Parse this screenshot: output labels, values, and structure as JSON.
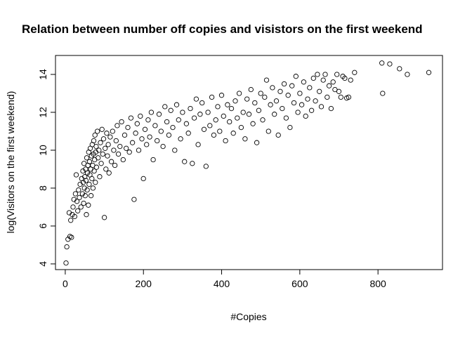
{
  "chart_data": {
    "type": "scatter",
    "title": "Relation between number off copies and visistors on the first weekend",
    "xlabel": "#Copies",
    "ylabel": "log(Visitors on the first weekend)",
    "xlim": [
      -25,
      965
    ],
    "ylim": [
      3.7,
      15.0
    ],
    "x_ticks": [
      0,
      200,
      400,
      600,
      800
    ],
    "y_ticks": [
      4,
      6,
      8,
      10,
      12,
      14
    ],
    "grid": false,
    "legend": "none",
    "marker": "open-circle",
    "point_color": "#000000",
    "points": [
      [
        2,
        4.05
      ],
      [
        4,
        4.9
      ],
      [
        7,
        5.3
      ],
      [
        12,
        5.45
      ],
      [
        16,
        5.4
      ],
      [
        10,
        6.7
      ],
      [
        14,
        6.3
      ],
      [
        18,
        6.6
      ],
      [
        20,
        7.0
      ],
      [
        24,
        6.5
      ],
      [
        22,
        7.4
      ],
      [
        26,
        7.7
      ],
      [
        28,
        8.7
      ],
      [
        30,
        7.3
      ],
      [
        32,
        6.8
      ],
      [
        34,
        7.9
      ],
      [
        36,
        7.5
      ],
      [
        38,
        8.2
      ],
      [
        40,
        7.0
      ],
      [
        42,
        8.5
      ],
      [
        44,
        7.7
      ],
      [
        45,
        8.9
      ],
      [
        46,
        8.3
      ],
      [
        47,
        7.2
      ],
      [
        48,
        9.3
      ],
      [
        49,
        8.0
      ],
      [
        50,
        8.6
      ],
      [
        51,
        7.6
      ],
      [
        52,
        9.0
      ],
      [
        53,
        8.4
      ],
      [
        54,
        6.6
      ],
      [
        55,
        9.6
      ],
      [
        56,
        7.9
      ],
      [
        57,
        8.8
      ],
      [
        58,
        9.2
      ],
      [
        59,
        7.1
      ],
      [
        60,
        9.9
      ],
      [
        61,
        8.2
      ],
      [
        62,
        9.4
      ],
      [
        63,
        8.7
      ],
      [
        64,
        10.1
      ],
      [
        65,
        9.0
      ],
      [
        66,
        7.6
      ],
      [
        67,
        9.7
      ],
      [
        68,
        8.5
      ],
      [
        69,
        10.3
      ],
      [
        70,
        9.2
      ],
      [
        71,
        8.0
      ],
      [
        72,
        9.8
      ],
      [
        73,
        10.5
      ],
      [
        74,
        8.9
      ],
      [
        75,
        9.5
      ],
      [
        76,
        10.8
      ],
      [
        77,
        8.3
      ],
      [
        78,
        9.9
      ],
      [
        79,
        10.2
      ],
      [
        80,
        9.1
      ],
      [
        82,
        11.0
      ],
      [
        84,
        9.6
      ],
      [
        86,
        10.0
      ],
      [
        88,
        8.6
      ],
      [
        90,
        10.4
      ],
      [
        92,
        9.3
      ],
      [
        94,
        11.1
      ],
      [
        96,
        9.8
      ],
      [
        98,
        10.6
      ],
      [
        100,
        6.45
      ],
      [
        102,
        10.1
      ],
      [
        104,
        9.0
      ],
      [
        106,
        10.9
      ],
      [
        108,
        9.7
      ],
      [
        110,
        10.3
      ],
      [
        112,
        8.8
      ],
      [
        115,
        10.7
      ],
      [
        118,
        9.4
      ],
      [
        121,
        11.0
      ],
      [
        124,
        10.0
      ],
      [
        127,
        9.2
      ],
      [
        130,
        10.5
      ],
      [
        133,
        11.3
      ],
      [
        136,
        9.8
      ],
      [
        140,
        10.2
      ],
      [
        144,
        11.5
      ],
      [
        148,
        9.5
      ],
      [
        152,
        10.8
      ],
      [
        156,
        10.1
      ],
      [
        160,
        11.2
      ],
      [
        164,
        9.9
      ],
      [
        168,
        11.7
      ],
      [
        172,
        10.4
      ],
      [
        176,
        7.4
      ],
      [
        180,
        10.9
      ],
      [
        184,
        11.4
      ],
      [
        188,
        10.0
      ],
      [
        192,
        11.8
      ],
      [
        196,
        10.6
      ],
      [
        200,
        8.5
      ],
      [
        204,
        11.1
      ],
      [
        208,
        10.3
      ],
      [
        212,
        11.6
      ],
      [
        216,
        10.7
      ],
      [
        220,
        12.0
      ],
      [
        225,
        9.5
      ],
      [
        230,
        11.3
      ],
      [
        235,
        10.5
      ],
      [
        240,
        11.9
      ],
      [
        245,
        11.0
      ],
      [
        250,
        10.2
      ],
      [
        255,
        12.3
      ],
      [
        260,
        11.5
      ],
      [
        265,
        10.8
      ],
      [
        270,
        12.1
      ],
      [
        275,
        11.2
      ],
      [
        280,
        10.0
      ],
      [
        285,
        12.4
      ],
      [
        290,
        11.6
      ],
      [
        295,
        10.6
      ],
      [
        300,
        12.0
      ],
      [
        305,
        9.4
      ],
      [
        310,
        11.4
      ],
      [
        315,
        10.9
      ],
      [
        320,
        12.2
      ],
      [
        325,
        9.3
      ],
      [
        330,
        11.7
      ],
      [
        335,
        12.7
      ],
      [
        340,
        10.3
      ],
      [
        345,
        11.9
      ],
      [
        350,
        12.5
      ],
      [
        355,
        11.1
      ],
      [
        360,
        9.15
      ],
      [
        365,
        12.0
      ],
      [
        370,
        11.3
      ],
      [
        375,
        12.8
      ],
      [
        380,
        10.8
      ],
      [
        385,
        11.6
      ],
      [
        390,
        12.3
      ],
      [
        395,
        11.0
      ],
      [
        400,
        12.9
      ],
      [
        405,
        11.8
      ],
      [
        410,
        10.5
      ],
      [
        415,
        12.4
      ],
      [
        420,
        11.5
      ],
      [
        425,
        12.2
      ],
      [
        430,
        10.9
      ],
      [
        435,
        12.6
      ],
      [
        440,
        11.7
      ],
      [
        445,
        13.0
      ],
      [
        450,
        11.2
      ],
      [
        455,
        12.0
      ],
      [
        460,
        10.6
      ],
      [
        465,
        12.7
      ],
      [
        470,
        11.9
      ],
      [
        475,
        13.2
      ],
      [
        480,
        11.4
      ],
      [
        485,
        12.5
      ],
      [
        490,
        10.4
      ],
      [
        495,
        12.1
      ],
      [
        500,
        13.0
      ],
      [
        505,
        11.6
      ],
      [
        510,
        12.8
      ],
      [
        515,
        13.7
      ],
      [
        520,
        11.0
      ],
      [
        525,
        12.4
      ],
      [
        530,
        13.3
      ],
      [
        535,
        11.9
      ],
      [
        540,
        12.6
      ],
      [
        545,
        10.8
      ],
      [
        550,
        13.1
      ],
      [
        555,
        12.2
      ],
      [
        560,
        13.5
      ],
      [
        565,
        11.7
      ],
      [
        570,
        12.9
      ],
      [
        575,
        11.2
      ],
      [
        580,
        13.4
      ],
      [
        585,
        12.5
      ],
      [
        590,
        13.9
      ],
      [
        595,
        12.0
      ],
      [
        600,
        13.0
      ],
      [
        605,
        12.4
      ],
      [
        610,
        13.6
      ],
      [
        615,
        11.8
      ],
      [
        620,
        12.7
      ],
      [
        625,
        13.3
      ],
      [
        630,
        12.1
      ],
      [
        635,
        13.8
      ],
      [
        640,
        12.6
      ],
      [
        645,
        14.0
      ],
      [
        650,
        13.1
      ],
      [
        655,
        12.3
      ],
      [
        660,
        13.7
      ],
      [
        665,
        14.0
      ],
      [
        670,
        12.8
      ],
      [
        675,
        13.4
      ],
      [
        680,
        12.2
      ],
      [
        685,
        13.6
      ],
      [
        690,
        13.2
      ],
      [
        695,
        14.0
      ],
      [
        700,
        13.1
      ],
      [
        705,
        12.8
      ],
      [
        710,
        13.9
      ],
      [
        715,
        13.8
      ],
      [
        720,
        12.75
      ],
      [
        725,
        12.8
      ],
      [
        730,
        13.7
      ],
      [
        740,
        14.1
      ],
      [
        810,
        14.6
      ],
      [
        812,
        13.0
      ],
      [
        830,
        14.55
      ],
      [
        855,
        14.3
      ],
      [
        875,
        14.0
      ],
      [
        930,
        14.1
      ]
    ]
  }
}
